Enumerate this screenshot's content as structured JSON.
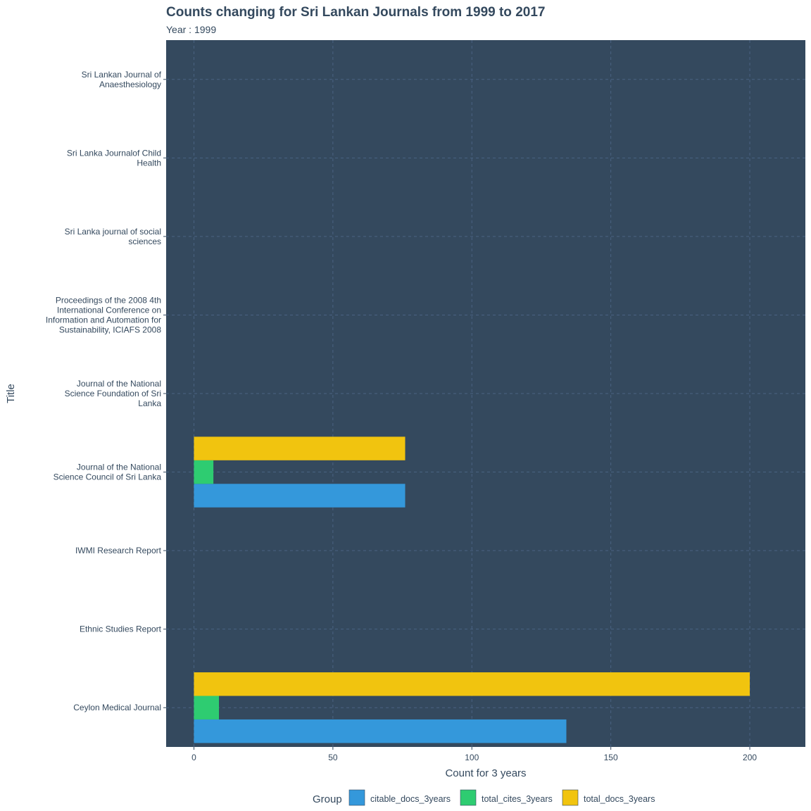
{
  "chart_data": {
    "type": "bar",
    "orientation": "horizontal",
    "title": "Counts changing for Sri Lankan Journals from 1999 to 2017",
    "subtitle": "Year : 1999",
    "xlabel": "Count for 3 years",
    "ylabel": "Title",
    "xlim": [
      -10,
      220
    ],
    "x_ticks": [
      0,
      50,
      100,
      150,
      200
    ],
    "grid": "dashed",
    "background_color": "#34495e",
    "grid_color": "#4a6382",
    "text_color": "#34495e",
    "legend_position": "bottom",
    "legend_title": "Group",
    "categories": [
      "Sri Lankan Journal of Anaesthesiology",
      "Sri Lanka Journalof Child Health",
      "Sri Lanka journal of social sciences",
      "Proceedings of the 2008 4th International Conference on Information and Automation for Sustainability, ICIAFS 2008",
      "Journal of the National Science Foundation of Sri Lanka",
      "Journal of the National Science Council of Sri Lanka",
      "IWMI Research Report",
      "Ethnic Studies Report",
      "Ceylon Medical Journal"
    ],
    "category_label_lines": [
      [
        "Sri Lankan Journal of",
        "Anaesthesiology"
      ],
      [
        "Sri Lanka Journalof Child",
        "Health"
      ],
      [
        "Sri Lanka journal of social",
        "sciences"
      ],
      [
        "Proceedings of the 2008 4th",
        "International Conference on",
        "Information and Automation for",
        "Sustainability, ICIAFS 2008"
      ],
      [
        "Journal of the National",
        "Science Foundation of Sri",
        "Lanka"
      ],
      [
        "Journal of the National",
        "Science Council of Sri Lanka"
      ],
      [
        "IWMI Research Report"
      ],
      [
        "Ethnic Studies Report"
      ],
      [
        "Ceylon Medical Journal"
      ]
    ],
    "series": [
      {
        "name": "citable_docs_3years",
        "color": "#3498db",
        "values": [
          null,
          null,
          null,
          null,
          null,
          76,
          null,
          null,
          134
        ]
      },
      {
        "name": "total_cites_3years",
        "color": "#2ecc71",
        "values": [
          null,
          null,
          null,
          null,
          null,
          7,
          null,
          null,
          9
        ]
      },
      {
        "name": "total_docs_3years",
        "color": "#f1c40f",
        "values": [
          null,
          null,
          null,
          null,
          null,
          76,
          null,
          null,
          200
        ]
      }
    ]
  }
}
